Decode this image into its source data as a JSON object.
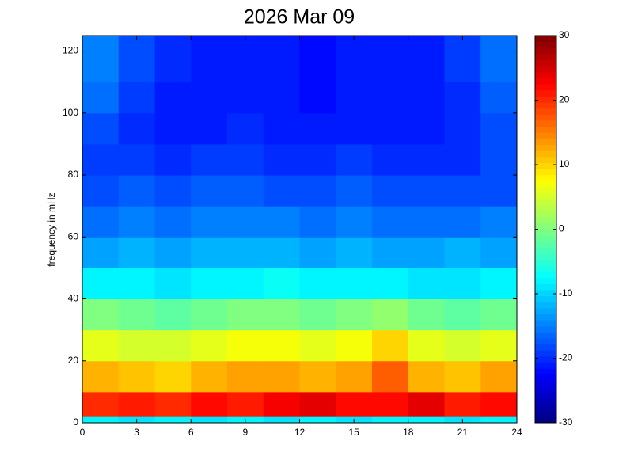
{
  "chart_data": {
    "type": "heatmap",
    "title": "2026 Mar 09",
    "ylabel": "frequency in mHz",
    "colormap": "jet",
    "x_bins": [
      0,
      2,
      4,
      6,
      8,
      10,
      12,
      14,
      16,
      18,
      20,
      22,
      24
    ],
    "y_bins": [
      0,
      2,
      10,
      20,
      30,
      40,
      50,
      60,
      70,
      80,
      90,
      100,
      110,
      125
    ],
    "z": [
      [
        -8,
        -9,
        -8,
        -9,
        -8,
        -9,
        -8,
        -9,
        -8,
        -8,
        -9,
        -8
      ],
      [
        20,
        21,
        20,
        22,
        21,
        23,
        24,
        22,
        22,
        24,
        21,
        22
      ],
      [
        12,
        11,
        10,
        12,
        13,
        13,
        12,
        13,
        17,
        12,
        11,
        13
      ],
      [
        6,
        5,
        5,
        6,
        7,
        7,
        6,
        7,
        10,
        6,
        5,
        6
      ],
      [
        0,
        -1,
        -2,
        -1,
        0,
        0,
        -1,
        0,
        1,
        -1,
        -2,
        -1
      ],
      [
        -8,
        -8,
        -9,
        -8,
        -8,
        -7,
        -8,
        -8,
        -8,
        -9,
        -9,
        -8
      ],
      [
        -13,
        -12,
        -13,
        -12,
        -12,
        -12,
        -13,
        -12,
        -13,
        -13,
        -12,
        -13
      ],
      [
        -16,
        -15,
        -16,
        -15,
        -15,
        -15,
        -16,
        -15,
        -16,
        -16,
        -16,
        -15
      ],
      [
        -18,
        -17,
        -18,
        -17,
        -17,
        -18,
        -18,
        -17,
        -18,
        -18,
        -18,
        -18
      ],
      [
        -19,
        -19,
        -20,
        -19,
        -19,
        -20,
        -20,
        -19,
        -20,
        -20,
        -20,
        -18
      ],
      [
        -18,
        -20,
        -21,
        -21,
        -20,
        -21,
        -21,
        -21,
        -21,
        -21,
        -20,
        -18
      ],
      [
        -16,
        -19,
        -21,
        -21,
        -21,
        -21,
        -22,
        -21,
        -21,
        -21,
        -20,
        -17
      ],
      [
        -15,
        -18,
        -20,
        -21,
        -21,
        -21,
        -22,
        -21,
        -21,
        -21,
        -19,
        -16
      ]
    ],
    "xlim": [
      0,
      24
    ],
    "xticks": [
      0,
      3,
      6,
      9,
      12,
      15,
      18,
      21,
      24
    ],
    "ylim": [
      0,
      125
    ],
    "yticks": [
      0,
      20,
      40,
      60,
      80,
      100,
      120
    ],
    "clim": [
      -30,
      30
    ],
    "cticks": [
      -30,
      -20,
      -10,
      0,
      10,
      20,
      30
    ]
  }
}
